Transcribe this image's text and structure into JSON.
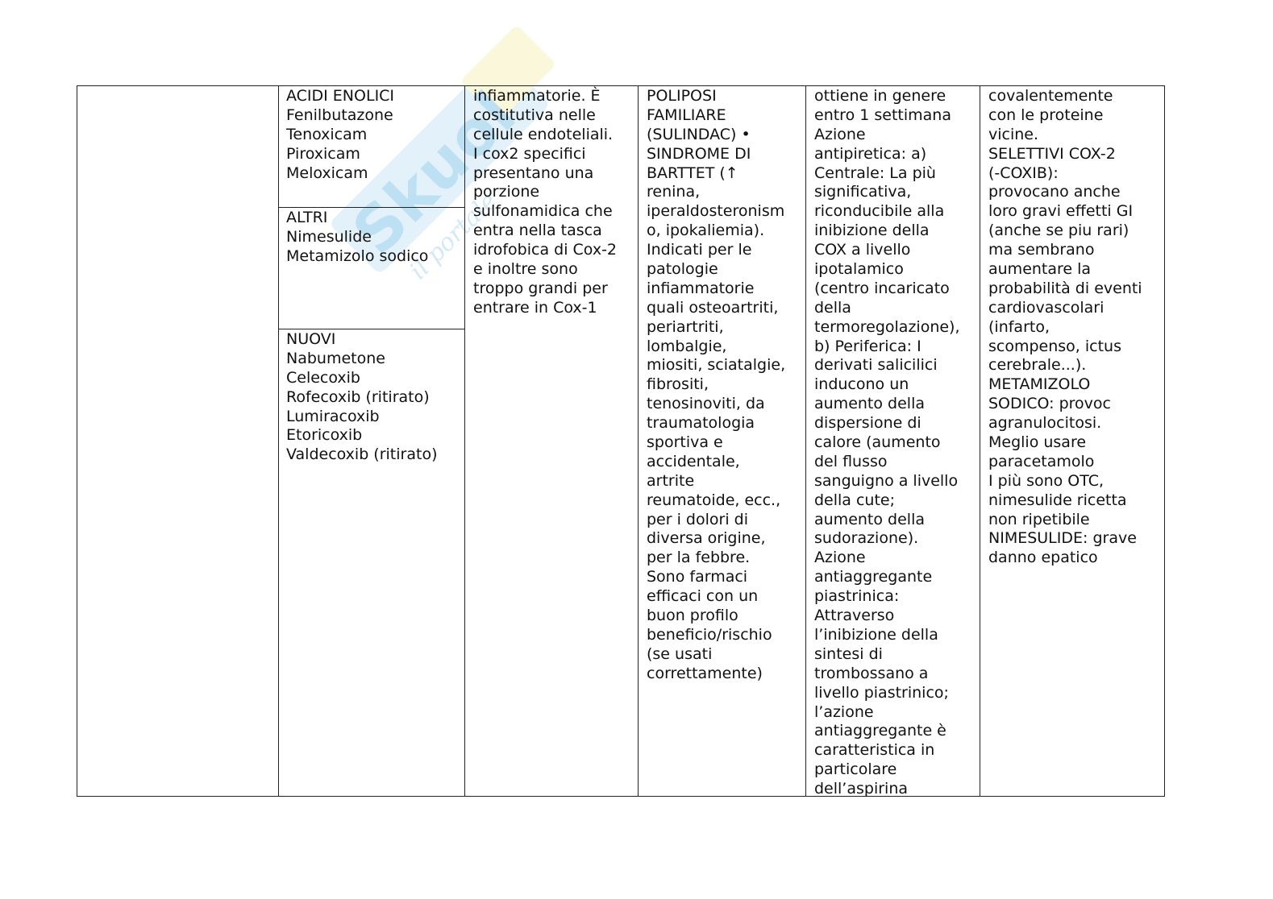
{
  "watermark": {
    "brand": "Skuola.net",
    "tagline": "il portale degli studenti",
    "color": "#7fc4ea",
    "accent": "#f5e79a"
  },
  "table": {
    "col2": {
      "section1": [
        "ACIDI ENOLICI",
        "Fenilbutazone",
        "Tenoxicam",
        "Piroxicam",
        "Meloxicam"
      ],
      "section2": [
        "ALTRI",
        "Nimesulide",
        "Metamizolo sodico"
      ],
      "section3": [
        "NUOVI",
        "Nabumetone",
        "Celecoxib",
        "Rofecoxib (ritirato)",
        "Lumiracoxib",
        "Etoricoxib",
        "Valdecoxib (ritirato)"
      ]
    },
    "col3": [
      "infiammatorie. È",
      "costitutiva nelle",
      "cellule endoteliali.",
      "I cox2 specifici",
      "presentano una",
      "porzione",
      "sulfonamidica che",
      "entra nella tasca",
      "idrofobica di Cox-2",
      "e inoltre sono",
      "troppo grandi per",
      "entrare in Cox-1"
    ],
    "col4": [
      "POLIPOSI",
      "FAMILIARE",
      "(SULINDAC) •",
      "SINDROME DI",
      "BARTTET (↑",
      "renina,",
      "iperaldosteronism",
      "o, ipokaliemia).",
      "Indicati per le",
      "patologie",
      "infiammatorie",
      "quali osteoartriti,",
      "periartriti,",
      "lombalgie,",
      "miositi, sciatalgie,",
      "fibrositi,",
      "tenosinoviti, da",
      "traumatologia",
      "sportiva e",
      "accidentale,",
      "artrite",
      "reumatoide, ecc.,",
      "per i dolori di",
      "diversa origine,",
      "per la febbre.",
      "Sono farmaci",
      "efficaci con un",
      "buon profilo",
      "beneficio/rischio",
      "(se usati",
      "correttamente)"
    ],
    "col5": [
      "ottiene in genere",
      "entro 1 settimana",
      "Azione",
      "antipiretica: a)",
      "Centrale: La più",
      "significativa,",
      "riconducibile alla",
      "inibizione della",
      "COX a livello",
      "ipotalamico",
      "(centro incaricato",
      "della",
      "termoregolazione),",
      "b) Periferica: I",
      "derivati salicilici",
      "inducono un",
      "aumento della",
      "dispersione di",
      "calore (aumento",
      "del flusso",
      "sanguigno a livello",
      "della cute;",
      "aumento della",
      "sudorazione).",
      "Azione",
      "antiaggregante",
      "piastrinica:",
      "Attraverso",
      "l’inibizione della",
      "sintesi di",
      "trombossano a",
      "livello piastrinico;",
      "l’azione",
      "antiaggregante è",
      "caratteristica in",
      "particolare",
      "dell’aspirina"
    ],
    "col6": [
      "covalentemente",
      "con le proteine",
      "vicine.",
      "SELETTIVI COX-2",
      " (-COXIB):",
      "provocano anche",
      "loro gravi effetti GI",
      "(anche se piu rari)",
      "ma sembrano",
      "aumentare la",
      "probabilità di eventi",
      "cardiovascolari",
      "(infarto,",
      "scompenso, ictus",
      "cerebrale...).",
      "METAMIZOLO",
      "SODICO: provoc",
      "agranulocitosi.",
      "Meglio usare",
      "paracetamolo",
      "I più sono OTC,",
      "nimesulide ricetta",
      "non ripetibile",
      "NIMESULIDE: grave",
      "danno epatico"
    ]
  }
}
